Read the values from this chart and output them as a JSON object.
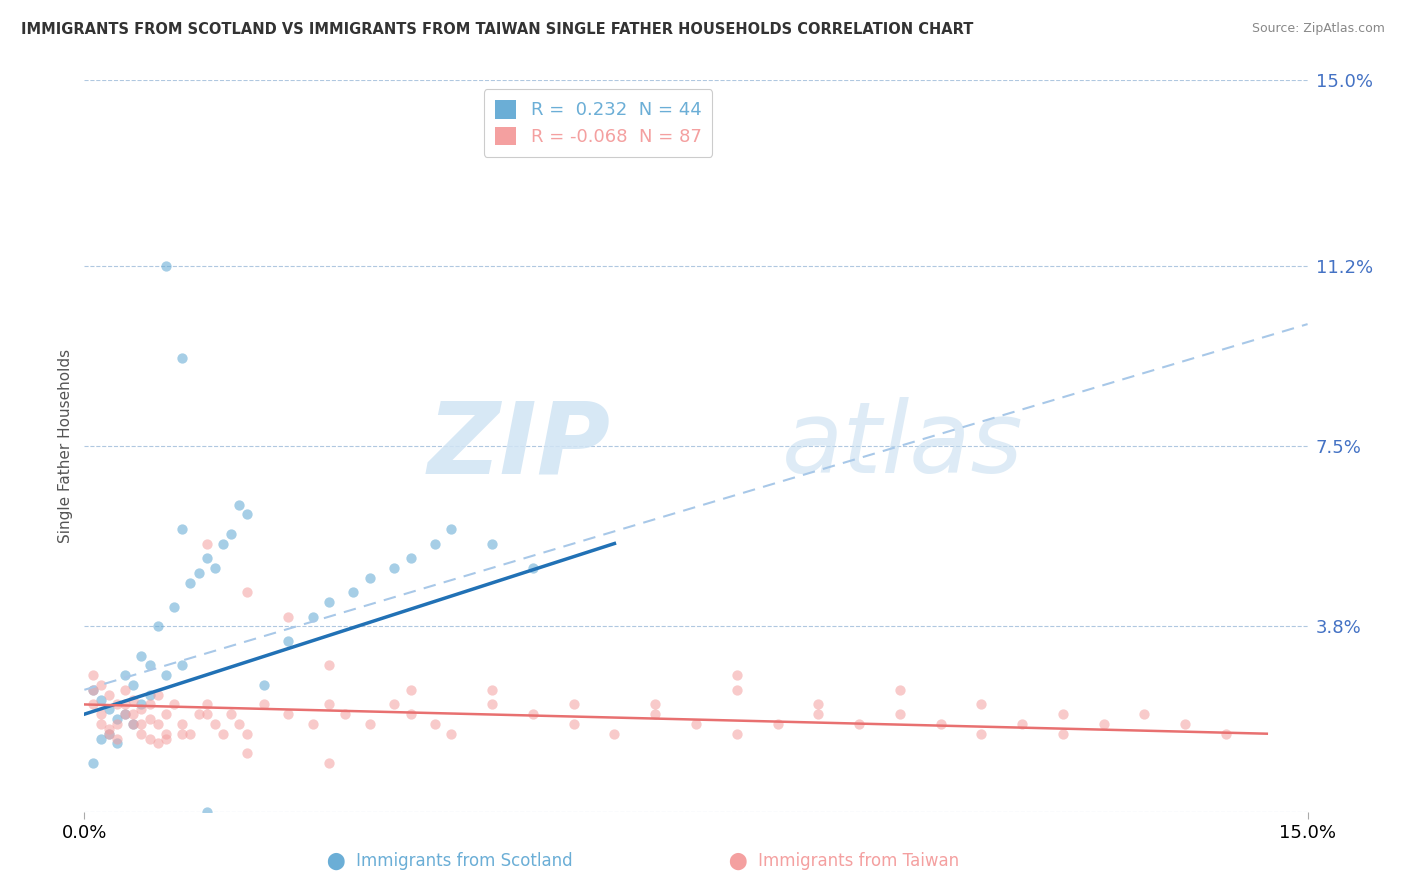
{
  "title": "IMMIGRANTS FROM SCOTLAND VS IMMIGRANTS FROM TAIWAN SINGLE FATHER HOUSEHOLDS CORRELATION CHART",
  "source": "Source: ZipAtlas.com",
  "ylabel": "Single Father Households",
  "xlim": [
    0.0,
    0.15
  ],
  "ylim": [
    0.0,
    0.15
  ],
  "yticks": [
    0.0,
    0.038,
    0.075,
    0.112,
    0.15
  ],
  "ytick_labels": [
    "",
    "3.8%",
    "7.5%",
    "11.2%",
    "15.0%"
  ],
  "scotland_color": "#6baed6",
  "taiwan_color": "#f4a0a0",
  "scotland_line_color": "#2171b5",
  "taiwan_line_color": "#e87070",
  "dashed_line_color": "#a8c8e8",
  "scotland_R": 0.232,
  "scotland_N": 44,
  "taiwan_R": -0.068,
  "taiwan_N": 87,
  "background_color": "#ffffff",
  "grid_color": "#b0c8e0",
  "scotland_x": [
    0.001,
    0.002,
    0.003,
    0.004,
    0.005,
    0.006,
    0.007,
    0.008,
    0.009,
    0.01,
    0.011,
    0.012,
    0.013,
    0.014,
    0.015,
    0.016,
    0.017,
    0.018,
    0.019,
    0.02,
    0.022,
    0.025,
    0.028,
    0.03,
    0.033,
    0.035,
    0.038,
    0.04,
    0.043,
    0.045,
    0.001,
    0.002,
    0.003,
    0.004,
    0.005,
    0.006,
    0.007,
    0.008,
    0.01,
    0.012,
    0.015,
    0.05,
    0.055,
    0.012
  ],
  "scotland_y": [
    0.025,
    0.023,
    0.021,
    0.019,
    0.028,
    0.026,
    0.032,
    0.03,
    0.038,
    0.112,
    0.042,
    0.093,
    0.047,
    0.049,
    0.052,
    0.05,
    0.055,
    0.057,
    0.063,
    0.061,
    0.026,
    0.035,
    0.04,
    0.043,
    0.045,
    0.048,
    0.05,
    0.052,
    0.055,
    0.058,
    0.01,
    0.015,
    0.016,
    0.014,
    0.02,
    0.018,
    0.022,
    0.024,
    0.028,
    0.03,
    0.0,
    0.055,
    0.05,
    0.058
  ],
  "taiwan_x": [
    0.001,
    0.001,
    0.002,
    0.002,
    0.003,
    0.003,
    0.004,
    0.004,
    0.005,
    0.005,
    0.006,
    0.006,
    0.007,
    0.007,
    0.008,
    0.008,
    0.009,
    0.009,
    0.01,
    0.01,
    0.011,
    0.012,
    0.013,
    0.014,
    0.015,
    0.016,
    0.017,
    0.018,
    0.019,
    0.02,
    0.022,
    0.025,
    0.028,
    0.03,
    0.032,
    0.035,
    0.038,
    0.04,
    0.043,
    0.045,
    0.05,
    0.055,
    0.06,
    0.065,
    0.07,
    0.075,
    0.08,
    0.085,
    0.09,
    0.095,
    0.1,
    0.105,
    0.11,
    0.115,
    0.12,
    0.125,
    0.13,
    0.135,
    0.14,
    0.001,
    0.002,
    0.003,
    0.004,
    0.005,
    0.006,
    0.007,
    0.008,
    0.009,
    0.01,
    0.012,
    0.015,
    0.02,
    0.025,
    0.03,
    0.04,
    0.05,
    0.06,
    0.07,
    0.08,
    0.09,
    0.1,
    0.11,
    0.12,
    0.015,
    0.02,
    0.03,
    0.08
  ],
  "taiwan_y": [
    0.025,
    0.022,
    0.02,
    0.018,
    0.017,
    0.016,
    0.015,
    0.018,
    0.022,
    0.02,
    0.018,
    0.02,
    0.016,
    0.018,
    0.015,
    0.022,
    0.024,
    0.018,
    0.02,
    0.016,
    0.022,
    0.018,
    0.016,
    0.02,
    0.022,
    0.018,
    0.016,
    0.02,
    0.018,
    0.016,
    0.022,
    0.02,
    0.018,
    0.022,
    0.02,
    0.018,
    0.022,
    0.02,
    0.018,
    0.016,
    0.022,
    0.02,
    0.018,
    0.016,
    0.02,
    0.018,
    0.016,
    0.018,
    0.02,
    0.018,
    0.02,
    0.018,
    0.016,
    0.018,
    0.016,
    0.018,
    0.02,
    0.018,
    0.016,
    0.028,
    0.026,
    0.024,
    0.022,
    0.025,
    0.023,
    0.021,
    0.019,
    0.014,
    0.015,
    0.016,
    0.055,
    0.045,
    0.04,
    0.03,
    0.025,
    0.025,
    0.022,
    0.022,
    0.025,
    0.022,
    0.025,
    0.022,
    0.02,
    0.02,
    0.012,
    0.01,
    0.028
  ],
  "scotland_line_x": [
    0.0,
    0.065
  ],
  "scotland_line_y": [
    0.02,
    0.055
  ],
  "taiwan_line_x": [
    0.0,
    0.145
  ],
  "taiwan_line_y": [
    0.022,
    0.016
  ],
  "dashed_line_x": [
    0.0,
    0.15
  ],
  "dashed_line_y": [
    0.025,
    0.1
  ]
}
